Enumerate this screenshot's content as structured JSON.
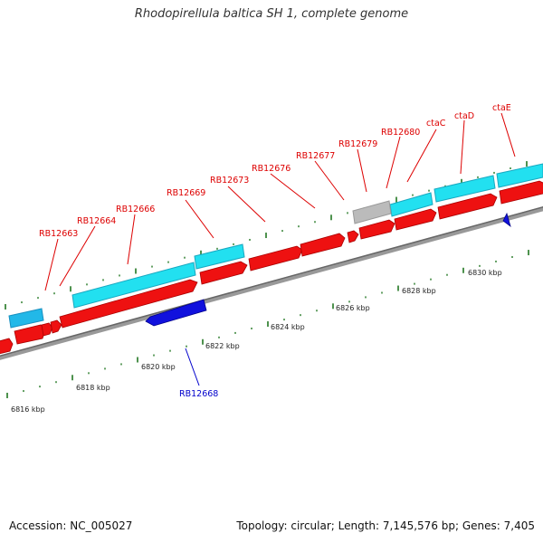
{
  "header": {
    "title": "Rhodopirellula baltica SH 1, complete genome"
  },
  "footer": {
    "accession": "Accession: NC_005027",
    "topology": "Topology: circular; Length: 7,145,576 bp; Genes: 7,405"
  },
  "colors": {
    "forward_gene": "#ee1111",
    "reverse_gene": "#1111dd",
    "cds_feature": "#22d8e8",
    "other_feature": "#bbbbbb",
    "backbone": "#888888",
    "tick": "#227722",
    "label_forward": "#dd0000",
    "label_reverse": "#0000cc"
  },
  "scale": {
    "unit": "kbp",
    "labels": [
      "6816 kbp",
      "6818 kbp",
      "6820 kbp",
      "6822 kbp",
      "6824 kbp",
      "6826 kbp",
      "6828 kbp",
      "6830 kbp"
    ]
  },
  "gene_labels": [
    {
      "name": "RB12663",
      "strand": "forward"
    },
    {
      "name": "RB12664",
      "strand": "forward"
    },
    {
      "name": "RB12666",
      "strand": "forward"
    },
    {
      "name": "RB12669",
      "strand": "forward"
    },
    {
      "name": "RB12673",
      "strand": "forward"
    },
    {
      "name": "RB12676",
      "strand": "forward"
    },
    {
      "name": "RB12677",
      "strand": "forward"
    },
    {
      "name": "RB12679",
      "strand": "forward"
    },
    {
      "name": "RB12680",
      "strand": "forward"
    },
    {
      "name": "ctaC",
      "strand": "forward"
    },
    {
      "name": "ctaD",
      "strand": "forward"
    },
    {
      "name": "ctaE",
      "strand": "forward"
    },
    {
      "name": "RB12668",
      "strand": "reverse"
    }
  ]
}
